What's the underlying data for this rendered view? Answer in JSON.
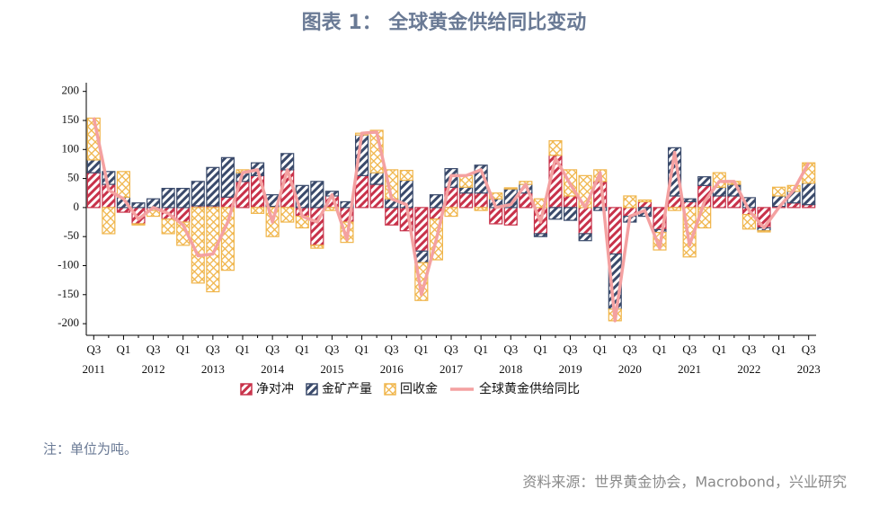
{
  "chart_data": {
    "type": "bar",
    "title": "图表 1： 全球黄金供给同比变动",
    "categories": [
      "Q3",
      null,
      "Q1",
      null,
      "Q3",
      null,
      "Q1",
      null,
      "Q3",
      null,
      "Q1",
      null,
      "Q3",
      null,
      "Q1",
      null,
      "Q3",
      null,
      "Q1",
      null,
      "Q3",
      null,
      "Q1",
      null,
      "Q3",
      null,
      "Q1",
      null,
      "Q3",
      null,
      "Q1",
      null,
      "Q3",
      null,
      "Q1",
      null,
      "Q3",
      null,
      "Q1",
      null,
      "Q3",
      null,
      "Q1",
      null,
      "Q3",
      null,
      "Q1",
      null,
      "Q3"
    ],
    "years": [
      "2011",
      "2012",
      "2013",
      "2014",
      "2015",
      "2016",
      "2017",
      "2018",
      "2019",
      "2020",
      "2021",
      "2022",
      "2023"
    ],
    "ylim": [
      -220,
      215
    ],
    "yticks": [
      -200,
      -150,
      -100,
      -50,
      0,
      50,
      100,
      150,
      200
    ],
    "series": [
      {
        "name": "净对冲",
        "color": "#c8324a",
        "pattern": "hatch",
        "values": [
          60,
          40,
          -8,
          -28,
          -5,
          -20,
          -25,
          3,
          3,
          18,
          45,
          55,
          2,
          65,
          -15,
          -65,
          20,
          -25,
          55,
          40,
          -30,
          -40,
          -75,
          -20,
          35,
          25,
          25,
          -28,
          -30,
          25,
          -45,
          90,
          20,
          -45,
          45,
          -80,
          -15,
          10,
          -38,
          20,
          10,
          38,
          20,
          20,
          -12,
          -35,
          2,
          8,
          5
        ]
      },
      {
        "name": "金矿产量",
        "color": "#3a4a6b",
        "pattern": "hatch",
        "values": [
          22,
          22,
          18,
          8,
          15,
          33,
          33,
          42,
          66,
          68,
          15,
          22,
          20,
          28,
          38,
          45,
          8,
          10,
          70,
          20,
          15,
          47,
          -20,
          22,
          32,
          10,
          48,
          15,
          32,
          15,
          -5,
          -20,
          -22,
          -12,
          -5,
          -95,
          -10,
          -15,
          -5,
          83,
          5,
          15,
          15,
          20,
          17,
          -5,
          18,
          20,
          37
        ]
      },
      {
        "name": "回收金",
        "color": "#f0b54a",
        "pattern": "cross",
        "values": [
          72,
          -45,
          44,
          -2,
          -10,
          -25,
          -40,
          -130,
          -145,
          -108,
          5,
          -10,
          -50,
          -25,
          -20,
          -5,
          -5,
          -35,
          3,
          73,
          50,
          17,
          -65,
          -70,
          -15,
          20,
          -5,
          10,
          2,
          5,
          15,
          25,
          45,
          55,
          20,
          -20,
          20,
          3,
          -30,
          -5,
          -85,
          -35,
          25,
          5,
          -25,
          -2,
          15,
          10,
          35
        ]
      },
      {
        "name": "全球黄金供给同比",
        "type": "line",
        "color": "#f4a1a1",
        "values": [
          155,
          30,
          15,
          -20,
          0,
          -10,
          -30,
          -83,
          -80,
          -25,
          60,
          65,
          -25,
          65,
          -15,
          -25,
          22,
          -55,
          128,
          130,
          15,
          5,
          -150,
          -55,
          55,
          55,
          65,
          0,
          5,
          40,
          -25,
          85,
          40,
          0,
          60,
          -195,
          -15,
          -5,
          -70,
          95,
          -65,
          10,
          45,
          45,
          -5,
          -35,
          0,
          30,
          77
        ]
      }
    ],
    "note": "注：单位为吨。",
    "source": "资料来源：世界黄金协会，Macrobond，兴业研究"
  }
}
